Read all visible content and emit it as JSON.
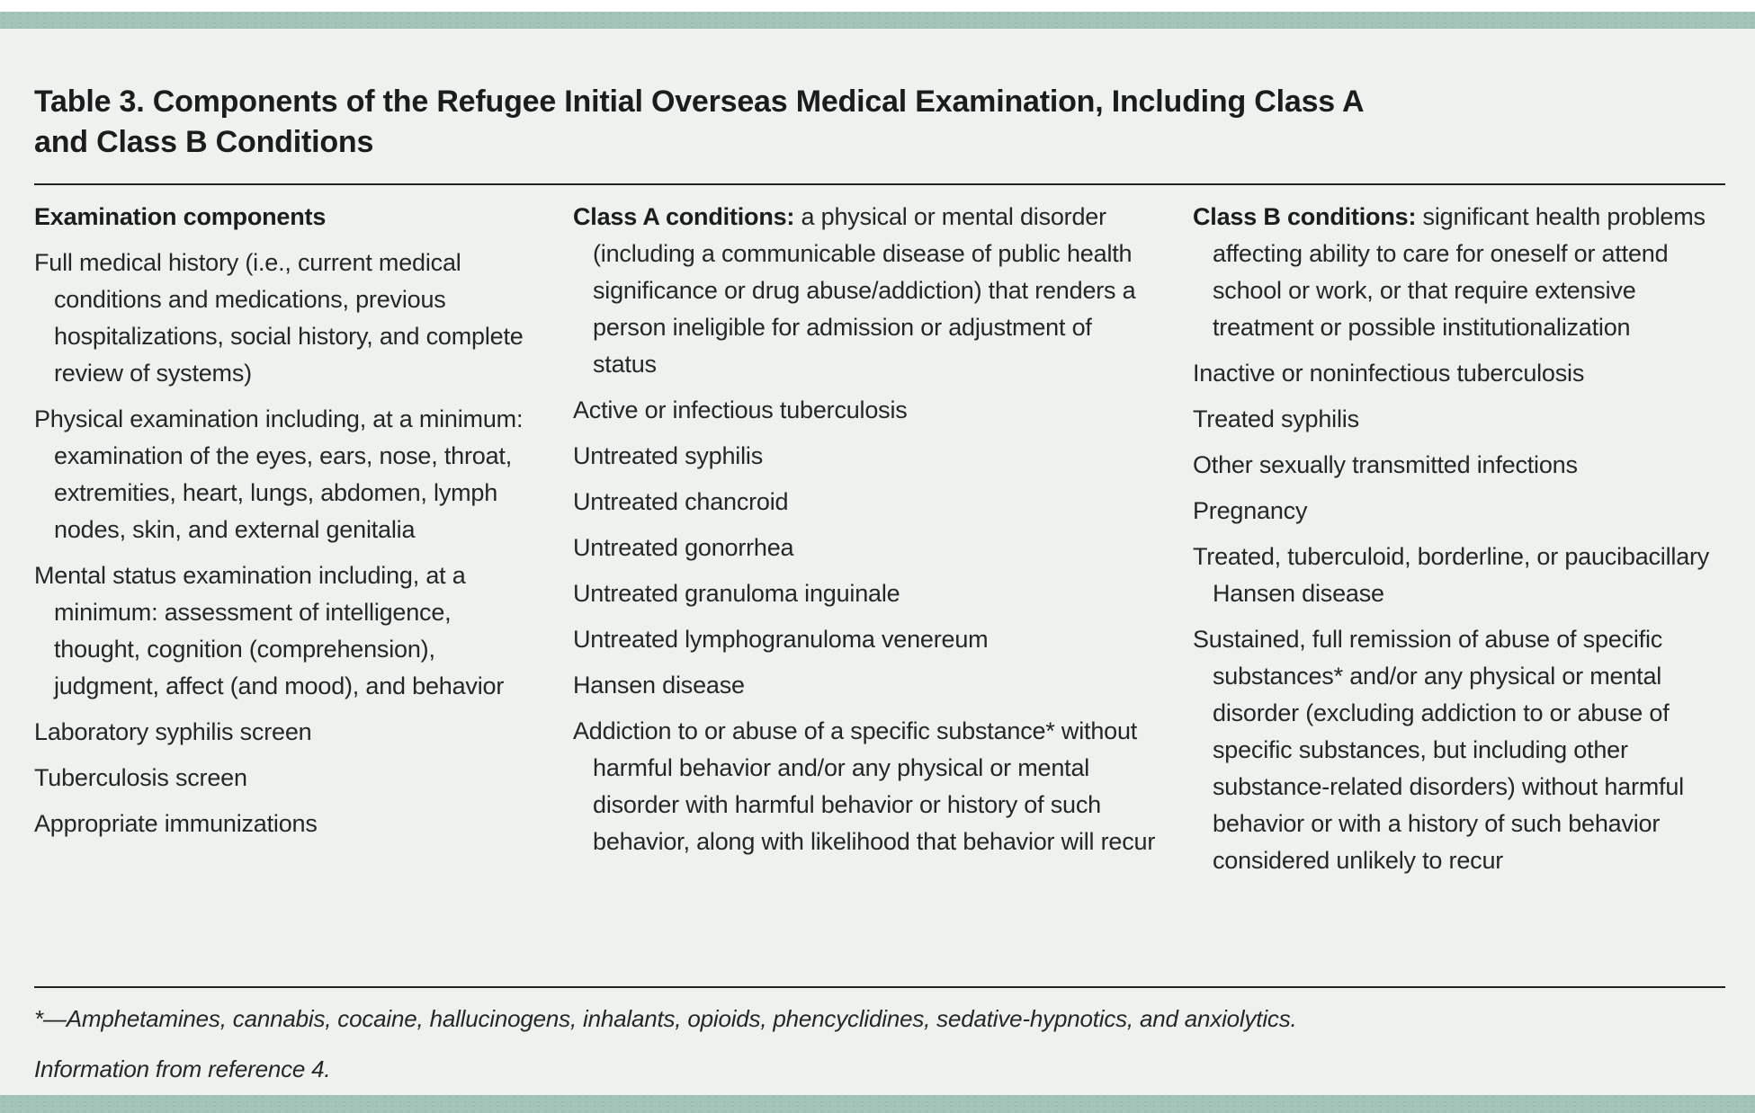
{
  "table": {
    "title_lines": [
      "Table 3. Components of the Refugee Initial Overseas Medical Examination, Including Class A",
      "and Class B Conditions"
    ],
    "columns": [
      {
        "lead_bold": "Examination components",
        "lead_rest": "",
        "items": [
          "Full medical history (i.e., current medical conditions and medications, previous hospitalizations, social history, and complete review of systems)",
          "Physical examination including, at a minimum: examination of the eyes, ears, nose, throat, extremities, heart, lungs, abdomen, lymph nodes, skin, and external genitalia",
          "Mental status examination including, at a minimum: assessment of intelligence, thought, cognition (comprehension), judgment, affect (and mood), and behavior",
          "Laboratory syphilis screen",
          "Tuberculosis screen",
          "Appropriate immunizations"
        ]
      },
      {
        "lead_bold": "Class A conditions:",
        "lead_rest": " a physical or mental disorder (including a communicable disease of public health significance or drug abuse/addiction) that renders a person ineligible for admission or adjustment of status",
        "items": [
          "Active or infectious tuberculosis",
          "Untreated syphilis",
          "Untreated chancroid",
          "Untreated gonorrhea",
          "Untreated granuloma inguinale",
          "Untreated lymphogranuloma venereum",
          "Hansen disease",
          "Addiction to or abuse of a specific substance* without harmful behavior and/or any physical or mental disorder with harmful behavior or history of such behavior, along with likelihood that behavior will recur"
        ]
      },
      {
        "lead_bold": "Class B conditions:",
        "lead_rest": " significant health problems affecting ability to care for oneself or attend school or work, or that require extensive treatment or possible institutionalization",
        "items": [
          "Inactive or noninfectious tuberculosis",
          "Treated syphilis",
          "Other sexually transmitted infections",
          "Pregnancy",
          "Treated, tuberculoid, borderline, or paucibacillary Hansen disease",
          "Sustained, full remission of abuse of specific substances* and/or any physical or mental disorder (excluding addiction to or abuse of specific substances, but including other substance-related disorders) without harmful behavior or with a history of such behavior considered unlikely to recur"
        ]
      }
    ],
    "footnotes": [
      "*—Amphetamines, cannabis, cocaine, hallucinogens, inhalants, opioids, phencyclidines, sedative-hypnotics, and anxiolytics.",
      "Information from reference 4."
    ],
    "colors": {
      "accent_bar": "#a3c4b8",
      "background": "#edf2ef",
      "text": "#262626",
      "rule": "#222222"
    }
  }
}
